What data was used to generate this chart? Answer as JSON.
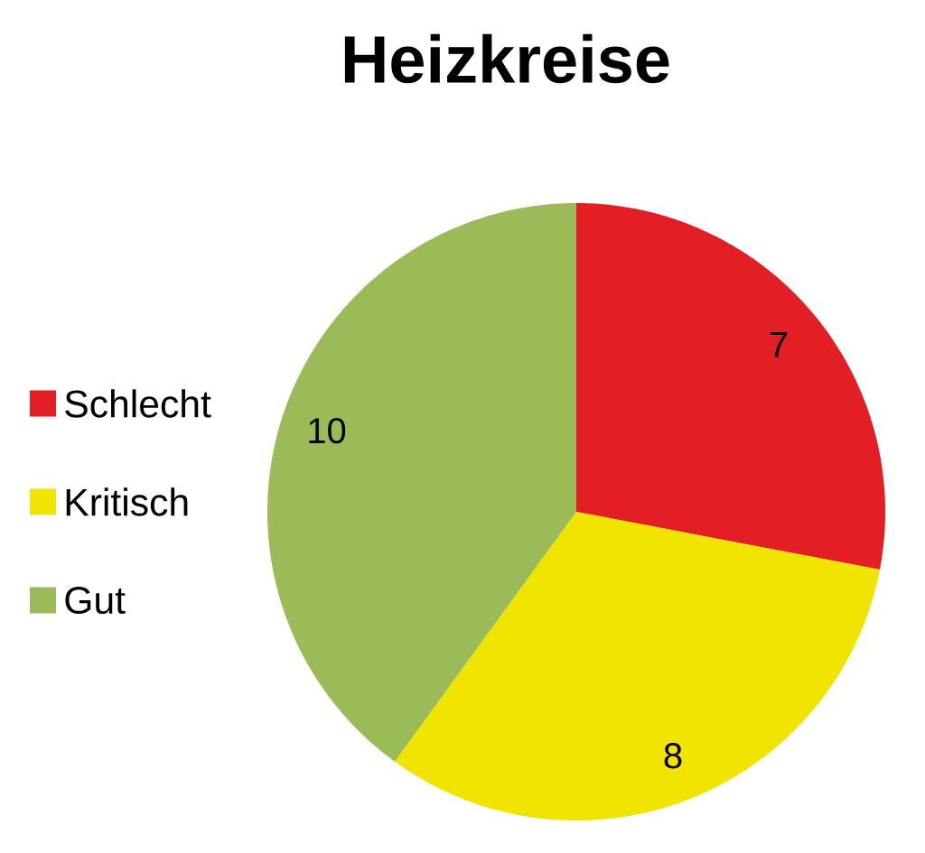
{
  "chart_data": {
    "type": "pie",
    "title": "Heizkreise",
    "categories": [
      "Schlecht",
      "Kritisch",
      "Gut"
    ],
    "values": [
      7,
      8,
      10
    ],
    "colors": [
      "#e31e24",
      "#f0e400",
      "#9bbb59"
    ],
    "data_labels": true,
    "legend": "left"
  }
}
